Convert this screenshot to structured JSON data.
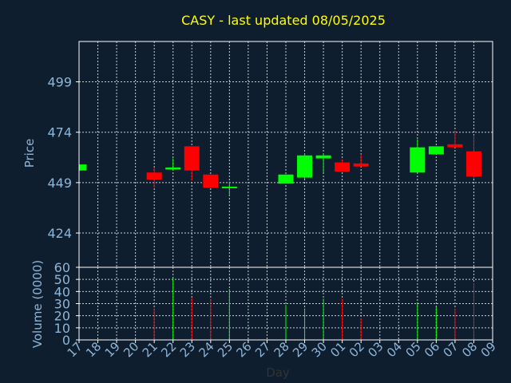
{
  "colors": {
    "background": "#0f1e2f",
    "title": "#ffff00",
    "axis_text": "#8db6d8",
    "frame": "#ffffff",
    "grid": "#c8d0d8",
    "up": "#00ff00",
    "down": "#ff0000"
  },
  "chart_data": {
    "type": "candlestick",
    "title": "CASY - last updated 08/05/2025",
    "xlabel": "Day",
    "grid": true,
    "x_ticks": [
      "17",
      "18",
      "19",
      "20",
      "21",
      "22",
      "23",
      "24",
      "25",
      "26",
      "27",
      "28",
      "29",
      "30",
      "01",
      "02",
      "03",
      "04",
      "05",
      "06",
      "07",
      "08",
      "09"
    ],
    "price_panel": {
      "ylabel": "Price",
      "ylim": [
        407,
        519
      ],
      "y_ticks": [
        424,
        449,
        474,
        499
      ],
      "candles": [
        {
          "day": "17",
          "open": 455.0,
          "close": 458.0,
          "high": 458.0,
          "low": 455.0,
          "direction": "up"
        },
        {
          "day": "21",
          "open": 454.0,
          "close": 450.5,
          "high": 456.5,
          "low": 446.5,
          "direction": "down"
        },
        {
          "day": "22",
          "open": 455.5,
          "close": 456.5,
          "high": 461.0,
          "low": 455.0,
          "direction": "up"
        },
        {
          "day": "23",
          "open": 467.0,
          "close": 455.0,
          "high": 467.0,
          "low": 450.0,
          "direction": "down"
        },
        {
          "day": "24",
          "open": 453.0,
          "close": 446.5,
          "high": 453.0,
          "low": 446.5,
          "direction": "down"
        },
        {
          "day": "25",
          "open": 446.5,
          "close": 447.0,
          "high": 449.5,
          "low": 442.5,
          "direction": "up"
        },
        {
          "day": "28",
          "open": 448.5,
          "close": 453.0,
          "high": 453.0,
          "low": 448.5,
          "direction": "up"
        },
        {
          "day": "29",
          "open": 451.5,
          "close": 462.5,
          "high": 463.5,
          "low": 451.0,
          "direction": "up"
        },
        {
          "day": "30",
          "open": 461.0,
          "close": 462.5,
          "high": 463.5,
          "low": 454.0,
          "direction": "up"
        },
        {
          "day": "01",
          "open": 459.0,
          "close": 454.5,
          "high": 460.5,
          "low": 454.5,
          "direction": "down"
        },
        {
          "day": "02",
          "open": 458.5,
          "close": 457.0,
          "high": 463.0,
          "low": 457.0,
          "direction": "down"
        },
        {
          "day": "05",
          "open": 454.0,
          "close": 466.5,
          "high": 470.5,
          "low": 454.0,
          "direction": "up"
        },
        {
          "day": "06",
          "open": 463.0,
          "close": 467.0,
          "high": 467.0,
          "low": 463.0,
          "direction": "up"
        },
        {
          "day": "07",
          "open": 468.0,
          "close": 466.5,
          "high": 474.5,
          "low": 466.5,
          "direction": "down"
        },
        {
          "day": "08",
          "open": 464.5,
          "close": 452.0,
          "high": 472.5,
          "low": 451.0,
          "direction": "down"
        }
      ]
    },
    "volume_panel": {
      "ylabel": "Volume (0000)",
      "ylim": [
        0,
        60
      ],
      "y_ticks": [
        0,
        10,
        20,
        30,
        40,
        50,
        60
      ],
      "volumes": [
        {
          "day": "21",
          "value": 26,
          "direction": "down"
        },
        {
          "day": "22",
          "value": 51,
          "direction": "up"
        },
        {
          "day": "23",
          "value": 35,
          "direction": "down"
        },
        {
          "day": "24",
          "value": 34,
          "direction": "down"
        },
        {
          "day": "25",
          "value": 42,
          "direction": "up"
        },
        {
          "day": "28",
          "value": 29,
          "direction": "up"
        },
        {
          "day": "29",
          "value": 26,
          "direction": "up"
        },
        {
          "day": "30",
          "value": 34,
          "direction": "up"
        },
        {
          "day": "01",
          "value": 34,
          "direction": "down"
        },
        {
          "day": "02",
          "value": 18,
          "direction": "down"
        },
        {
          "day": "05",
          "value": 30,
          "direction": "up"
        },
        {
          "day": "06",
          "value": 27,
          "direction": "up"
        },
        {
          "day": "07",
          "value": 26,
          "direction": "down"
        },
        {
          "day": "08",
          "value": 47,
          "direction": "down"
        }
      ]
    }
  }
}
